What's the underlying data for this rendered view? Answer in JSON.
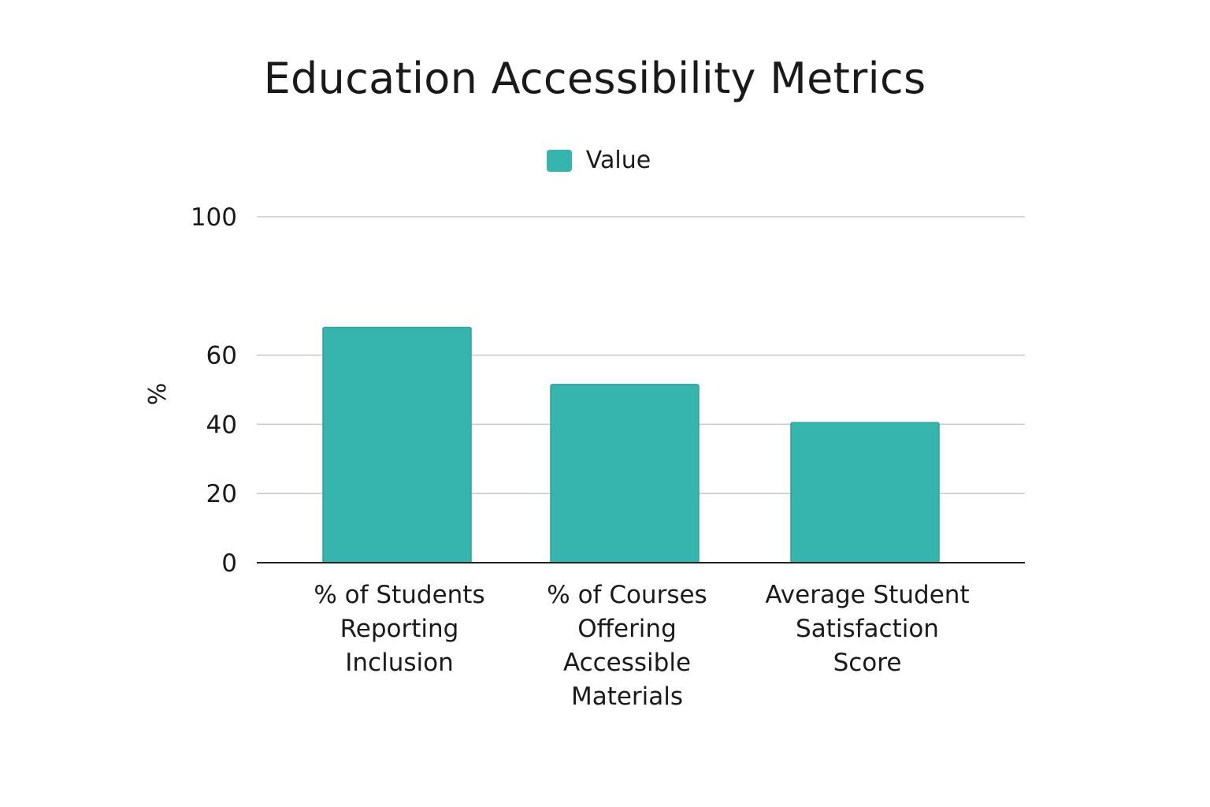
{
  "chart_data": {
    "type": "bar",
    "title": "Education Accessibility Metrics",
    "ylabel": "%",
    "xlabel": "",
    "categories": [
      "% of Students\nReporting\nInclusion",
      "% of Courses\nOffering\nAccessible\nMaterials",
      "Average Student\nSatisfaction\nScore"
    ],
    "series": [
      {
        "name": "Value",
        "values": [
          68,
          51.5,
          40.5
        ]
      }
    ],
    "ylim": [
      0,
      100
    ],
    "y_ticks": [
      0,
      20,
      40,
      60,
      100
    ],
    "grid": true,
    "legend": "top-center",
    "color": "#35b5ad"
  }
}
